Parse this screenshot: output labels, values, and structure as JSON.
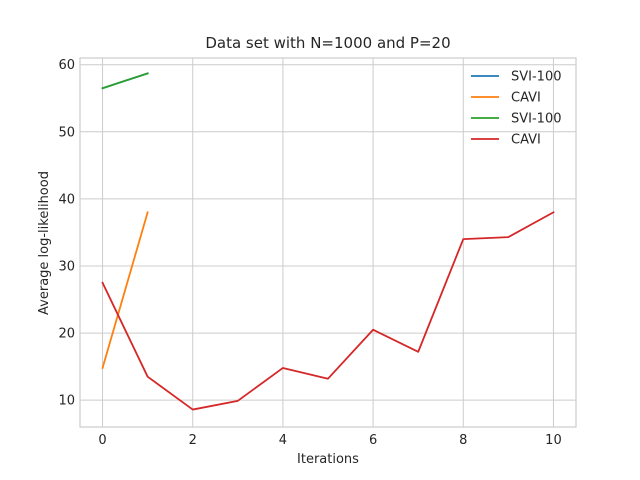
{
  "chart_data": {
    "type": "line",
    "title": "Data set with N=1000 and P=20",
    "xlabel": "Iterations",
    "ylabel": "Average log-likelihood",
    "xlim": [
      -0.5,
      10.5
    ],
    "ylim": [
      6,
      61
    ],
    "xticks": [
      0,
      2,
      4,
      6,
      8,
      10
    ],
    "yticks": [
      10,
      20,
      30,
      40,
      50,
      60
    ],
    "grid": true,
    "legend_position": "top-right",
    "series": [
      {
        "name": "SVI-100",
        "color": "#1f77b4",
        "x": [
          0,
          1
        ],
        "y": [
          56.5,
          58.7
        ]
      },
      {
        "name": "CAVI",
        "color": "#ff7f0e",
        "x": [
          0,
          1
        ],
        "y": [
          14.8,
          38.0
        ]
      },
      {
        "name": "SVI-100",
        "color": "#2ca02c",
        "x": [
          0,
          1
        ],
        "y": [
          56.5,
          58.7
        ]
      },
      {
        "name": "CAVI",
        "color": "#d62728",
        "x": [
          0,
          1,
          2,
          3,
          4,
          5,
          6,
          7,
          8,
          9,
          10
        ],
        "y": [
          27.5,
          13.5,
          8.6,
          9.9,
          14.8,
          13.2,
          20.5,
          17.2,
          34.0,
          34.3,
          38.0
        ]
      }
    ]
  }
}
